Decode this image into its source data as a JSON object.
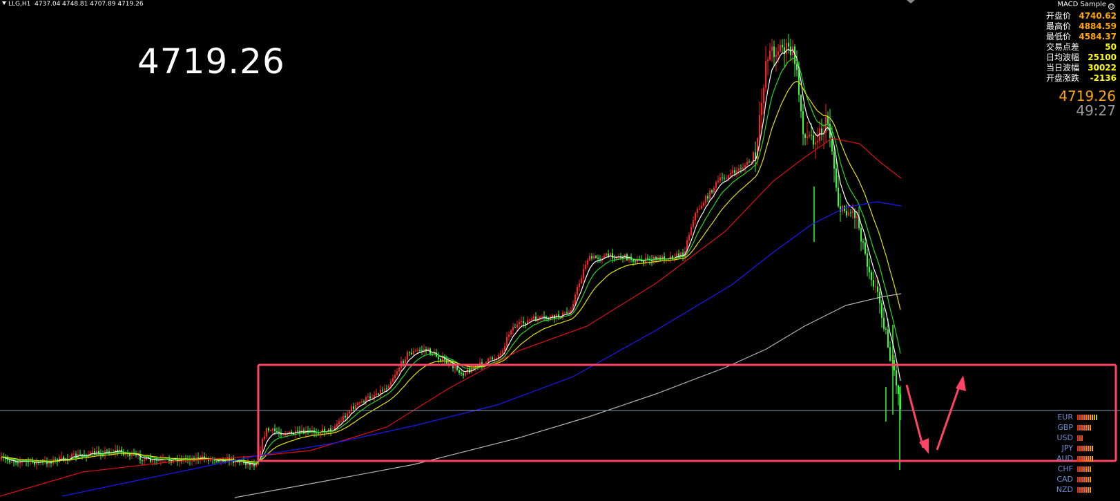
{
  "header": {
    "symbol": "LLG,H1",
    "ohlc": "4737.04 4748.81 4707.89 4719.26"
  },
  "big_price": "4719.26",
  "ea_label": "MACD Sample",
  "stats": [
    {
      "label": "开盘价",
      "value": "4740.62",
      "color": "orange"
    },
    {
      "label": "最高价",
      "value": "4884.59",
      "color": "orange"
    },
    {
      "label": "最低价",
      "value": "4584.37",
      "color": "orange"
    },
    {
      "label": "交易点差",
      "value": "50",
      "color": "yellow"
    },
    {
      "label": "日均波幅",
      "value": "25100",
      "color": "yellow"
    },
    {
      "label": "当日波幅",
      "value": "30022",
      "color": "yellow"
    },
    {
      "label": "开盘涨跌",
      "value": "-2136",
      "color": "yellow"
    }
  ],
  "current_price": "4719.26",
  "bar_timer": "49:27",
  "currencies": [
    {
      "code": "EUR",
      "level": 10
    },
    {
      "code": "GBP",
      "level": 7
    },
    {
      "code": "USD",
      "level": 3
    },
    {
      "code": "JPY",
      "level": 8
    },
    {
      "code": "AUD",
      "level": 8
    },
    {
      "code": "CHF",
      "level": 7
    },
    {
      "code": "CAD",
      "level": 7
    },
    {
      "code": "NZD",
      "level": 7
    }
  ],
  "colors": {
    "bull": "#ff2020",
    "bear": "#33ff33",
    "ma_white": "#ffffff",
    "ma_green": "#22dd22",
    "ma_yellow": "#e6e600",
    "ma_red": "#e01010",
    "ma_blue": "#1a1aff",
    "ma_gray": "#b4b4b4",
    "annotation": "#ff4466",
    "hline": "#8aa0b0"
  }
}
